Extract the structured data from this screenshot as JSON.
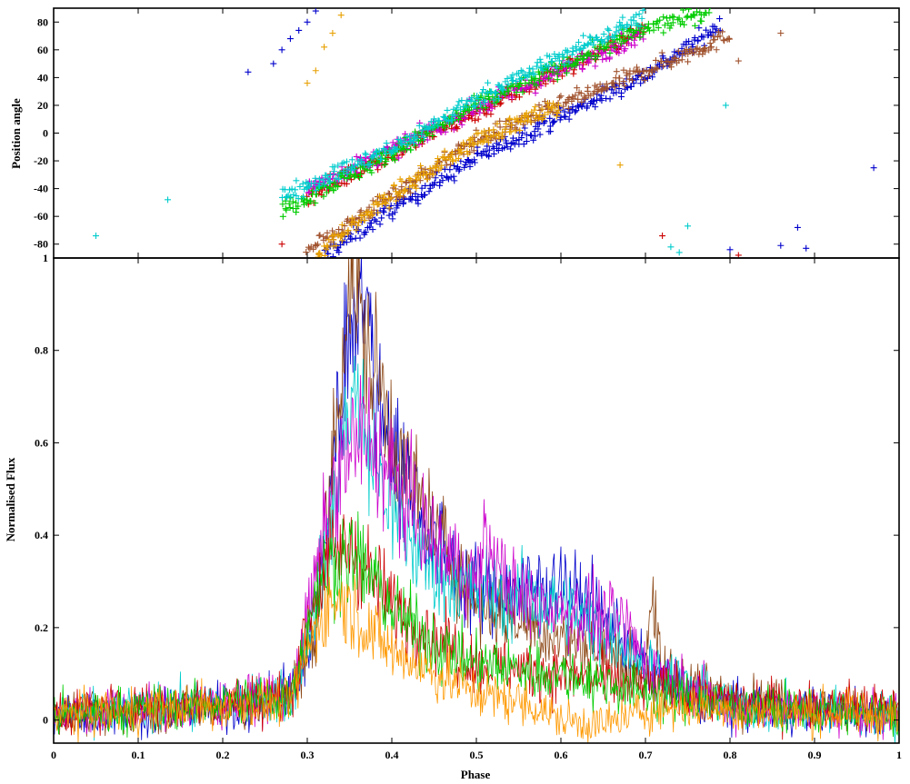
{
  "chart_data": [
    {
      "type": "scatter",
      "panel": "top",
      "xlabel": "",
      "ylabel": "Position angle",
      "xlim": [
        0,
        1
      ],
      "ylim": [
        -90,
        90
      ],
      "y_ticks": [
        80,
        60,
        40,
        20,
        0,
        -20,
        -40,
        -60,
        -80
      ],
      "y_tick_labels": [
        "80",
        "60",
        "40",
        "20",
        "0",
        "-20",
        "-40",
        "-60",
        "-80"
      ],
      "marker": "+",
      "series": [
        {
          "color": "#0000cc",
          "trend": {
            "x": [
              0.32,
              0.4,
              0.5,
              0.6,
              0.7,
              0.79
            ],
            "y": [
              -88,
              -55,
              -18,
              12,
              42,
              78
            ]
          },
          "extra_x": [
            0.23,
            0.26,
            0.27,
            0.28,
            0.29,
            0.3,
            0.31,
            0.97,
            0.88,
            0.86,
            0.89,
            0.8
          ],
          "extra_y": [
            44,
            50,
            60,
            68,
            74,
            80,
            88,
            -25,
            -68,
            -81,
            -83,
            -84
          ]
        },
        {
          "color": "#a0522d",
          "trend": {
            "x": [
              0.3,
              0.4,
              0.5,
              0.6,
              0.7,
              0.8
            ],
            "y": [
              -85,
              -45,
              -5,
              20,
              45,
              70
            ]
          },
          "extra_x": [
            0.86,
            0.81
          ],
          "extra_y": [
            72,
            52
          ]
        },
        {
          "color": "#e8a000",
          "trend": {
            "x": [
              0.31,
              0.4,
              0.5,
              0.6
            ],
            "y": [
              -88,
              -45,
              -5,
              20
            ]
          },
          "extra_x": [
            0.3,
            0.31,
            0.32,
            0.33,
            0.34,
            0.67
          ],
          "extra_y": [
            36,
            45,
            62,
            72,
            85,
            -23
          ]
        },
        {
          "color": "#cc0000",
          "trend": {
            "x": [
              0.3,
              0.4,
              0.5,
              0.6,
              0.7
            ],
            "y": [
              -45,
              -15,
              15,
              45,
              75
            ]
          },
          "extra_x": [
            0.27,
            0.72,
            0.81
          ],
          "extra_y": [
            -80,
            -74,
            -88
          ]
        },
        {
          "color": "#cc00cc",
          "trend": {
            "x": [
              0.3,
              0.4,
              0.5,
              0.6,
              0.7
            ],
            "y": [
              -40,
              -12,
              18,
              45,
              72
            ]
          },
          "extra_x": [],
          "extra_y": []
        },
        {
          "color": "#00cc00",
          "trend": {
            "x": [
              0.27,
              0.4,
              0.5,
              0.6,
              0.7,
              0.78
            ],
            "y": [
              -55,
              -15,
              20,
              48,
              75,
              89
            ]
          },
          "extra_x": [],
          "extra_y": []
        },
        {
          "color": "#00cccc",
          "trend": {
            "x": [
              0.27,
              0.4,
              0.5,
              0.6,
              0.7
            ],
            "y": [
              -45,
              -12,
              25,
              55,
              85
            ]
          },
          "extra_x": [
            0.05,
            0.135,
            0.795,
            0.75,
            0.73,
            0.74
          ],
          "extra_y": [
            -74,
            -48,
            20,
            -67,
            -82,
            -86
          ]
        }
      ]
    },
    {
      "type": "line",
      "panel": "bottom",
      "xlabel": "Phase",
      "ylabel": "Normalised Flux",
      "xlim": [
        0,
        1
      ],
      "ylim": [
        -0.05,
        1
      ],
      "x_ticks": [
        0,
        0.1,
        0.2,
        0.3,
        0.4,
        0.5,
        0.6,
        0.7,
        0.8,
        0.9,
        1
      ],
      "x_tick_labels": [
        "0",
        "0.1",
        "0.2",
        "0.3",
        "0.4",
        "0.5",
        "0.6",
        "0.7",
        "0.8",
        "0.9",
        "1"
      ],
      "y_ticks": [
        0,
        0.2,
        0.4,
        0.6,
        0.8,
        1
      ],
      "y_tick_labels": [
        "0",
        "0.2",
        "0.4",
        "0.6",
        "0.8",
        "1"
      ],
      "series": [
        {
          "color": "#0000cc",
          "x": [
            0,
            0.25,
            0.29,
            0.31,
            0.33,
            0.35,
            0.36,
            0.37,
            0.38,
            0.4,
            0.42,
            0.45,
            0.5,
            0.55,
            0.6,
            0.65,
            0.7,
            0.75,
            0.8,
            1.0
          ],
          "y": [
            0.01,
            0.03,
            0.08,
            0.2,
            0.55,
            0.85,
            0.94,
            0.9,
            0.72,
            0.6,
            0.52,
            0.38,
            0.28,
            0.28,
            0.3,
            0.22,
            0.12,
            0.05,
            0.03,
            0.01
          ]
        },
        {
          "color": "#8b4513",
          "x": [
            0,
            0.25,
            0.29,
            0.31,
            0.33,
            0.345,
            0.355,
            0.36,
            0.37,
            0.39,
            0.41,
            0.44,
            0.5,
            0.6,
            0.7,
            0.705,
            0.72,
            0.75,
            0.8,
            1.0
          ],
          "y": [
            0.01,
            0.03,
            0.08,
            0.2,
            0.55,
            0.88,
            0.96,
            0.9,
            0.8,
            0.7,
            0.55,
            0.45,
            0.25,
            0.18,
            0.1,
            0.26,
            0.1,
            0.08,
            0.05,
            0.01
          ]
        },
        {
          "color": "#00cccc",
          "x": [
            0,
            0.28,
            0.31,
            0.33,
            0.35,
            0.355,
            0.37,
            0.4,
            0.45,
            0.5,
            0.55,
            0.6,
            0.65,
            0.7,
            0.8,
            1.0
          ],
          "y": [
            0.01,
            0.05,
            0.25,
            0.45,
            0.7,
            0.72,
            0.6,
            0.45,
            0.32,
            0.28,
            0.26,
            0.24,
            0.2,
            0.12,
            0.03,
            0.01
          ]
        },
        {
          "color": "#cc00cc",
          "x": [
            0,
            0.28,
            0.31,
            0.33,
            0.35,
            0.37,
            0.4,
            0.45,
            0.5,
            0.51,
            0.55,
            0.6,
            0.65,
            0.68,
            0.7,
            0.8,
            1.0
          ],
          "y": [
            0.01,
            0.05,
            0.3,
            0.5,
            0.58,
            0.62,
            0.52,
            0.38,
            0.3,
            0.38,
            0.26,
            0.24,
            0.22,
            0.2,
            0.12,
            0.03,
            0.01
          ]
        },
        {
          "color": "#cc0000",
          "x": [
            0,
            0.28,
            0.31,
            0.33,
            0.35,
            0.38,
            0.4,
            0.45,
            0.5,
            0.6,
            0.7,
            0.8,
            1.0
          ],
          "y": [
            0.02,
            0.05,
            0.28,
            0.35,
            0.38,
            0.3,
            0.25,
            0.18,
            0.12,
            0.1,
            0.07,
            0.04,
            0.03
          ]
        },
        {
          "color": "#00cc00",
          "x": [
            0,
            0.28,
            0.31,
            0.33,
            0.35,
            0.38,
            0.4,
            0.45,
            0.5,
            0.6,
            0.7,
            0.8,
            1.0
          ],
          "y": [
            0.01,
            0.05,
            0.28,
            0.34,
            0.36,
            0.3,
            0.24,
            0.16,
            0.12,
            0.1,
            0.06,
            0.03,
            0.01
          ]
        },
        {
          "color": "#ff9900",
          "x": [
            0,
            0.28,
            0.31,
            0.33,
            0.35,
            0.37,
            0.4,
            0.45,
            0.5,
            0.55,
            0.58,
            0.6,
            0.65,
            0.7,
            0.75,
            0.8,
            1.0
          ],
          "y": [
            0.01,
            0.04,
            0.2,
            0.26,
            0.25,
            0.2,
            0.15,
            0.1,
            0.06,
            0.04,
            0.02,
            0.0,
            -0.01,
            0.02,
            0.03,
            0.02,
            0.01
          ]
        }
      ]
    }
  ]
}
